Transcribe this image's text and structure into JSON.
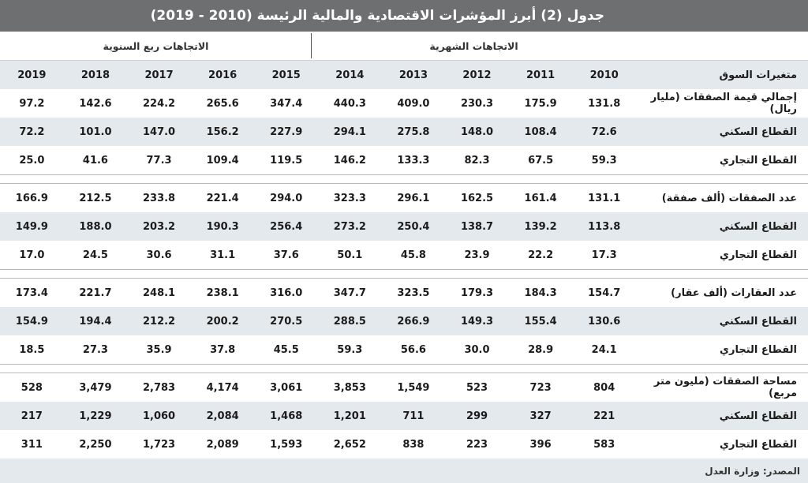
{
  "title": "جدول (2) أبرز المؤشرات الاقتصادية والمالية الرئيسة (2010 - 2019)",
  "groups": {
    "monthly": "الاتجاهات الشهرية",
    "quarterly": "الاتجاهات ربع السنوية"
  },
  "header": {
    "label": "متغيرات السوق",
    "years": [
      "2010",
      "2011",
      "2012",
      "2013",
      "2014",
      "2015",
      "2016",
      "2017",
      "2018",
      "2019"
    ]
  },
  "sections": [
    {
      "rows": [
        {
          "label": "إجمالي قيمة الصفقات (مليار ريال)",
          "values": [
            "131.8",
            "175.9",
            "230.3",
            "409.0",
            "440.3",
            "347.4",
            "265.6",
            "224.2",
            "142.6",
            "97.2"
          ]
        },
        {
          "label": "القطاع السكني",
          "values": [
            "72.6",
            "108.4",
            "148.0",
            "275.8",
            "294.1",
            "227.9",
            "156.2",
            "147.0",
            "101.0",
            "72.2"
          ]
        },
        {
          "label": "القطاع التجاري",
          "values": [
            "59.3",
            "67.5",
            "82.3",
            "133.3",
            "146.2",
            "119.5",
            "109.4",
            "77.3",
            "41.6",
            "25.0"
          ]
        }
      ]
    },
    {
      "rows": [
        {
          "label": "عدد الصفقات (ألف صفقة)",
          "values": [
            "131.1",
            "161.4",
            "162.5",
            "296.1",
            "323.3",
            "294.0",
            "221.4",
            "233.8",
            "212.5",
            "166.9"
          ]
        },
        {
          "label": "القطاع السكني",
          "values": [
            "113.8",
            "139.2",
            "138.7",
            "250.4",
            "273.2",
            "256.4",
            "190.3",
            "203.2",
            "188.0",
            "149.9"
          ]
        },
        {
          "label": "القطاع التجاري",
          "values": [
            "17.3",
            "22.2",
            "23.9",
            "45.8",
            "50.1",
            "37.6",
            "31.1",
            "30.6",
            "24.5",
            "17.0"
          ]
        }
      ]
    },
    {
      "rows": [
        {
          "label": "عدد العقارات (ألف عقار)",
          "values": [
            "154.7",
            "184.3",
            "179.3",
            "323.5",
            "347.7",
            "316.0",
            "238.1",
            "248.1",
            "221.7",
            "173.4"
          ]
        },
        {
          "label": "القطاع السكني",
          "values": [
            "130.6",
            "155.4",
            "149.3",
            "266.9",
            "288.5",
            "270.5",
            "200.2",
            "212.2",
            "194.4",
            "154.9"
          ]
        },
        {
          "label": "القطاع التجاري",
          "values": [
            "24.1",
            "28.9",
            "30.0",
            "56.6",
            "59.3",
            "45.5",
            "37.8",
            "35.9",
            "27.3",
            "18.5"
          ]
        }
      ]
    },
    {
      "rows": [
        {
          "label": "مساحة الصفقات (مليون متر مربع)",
          "values": [
            "804",
            "723",
            "523",
            "1,549",
            "3,853",
            "3,061",
            "4,174",
            "2,783",
            "3,479",
            "528"
          ]
        },
        {
          "label": "القطاع السكني",
          "values": [
            "221",
            "327",
            "299",
            "711",
            "1,201",
            "1,468",
            "2,084",
            "1,060",
            "1,229",
            "217"
          ]
        },
        {
          "label": "القطاع التجاري",
          "values": [
            "583",
            "396",
            "223",
            "838",
            "2,652",
            "1,593",
            "2,089",
            "1,723",
            "2,250",
            "311"
          ]
        }
      ]
    }
  ],
  "source": "المصدر: وزارة العدل",
  "colors": {
    "title_bg": "#6d6f71",
    "shade": "#e3e9ed"
  }
}
